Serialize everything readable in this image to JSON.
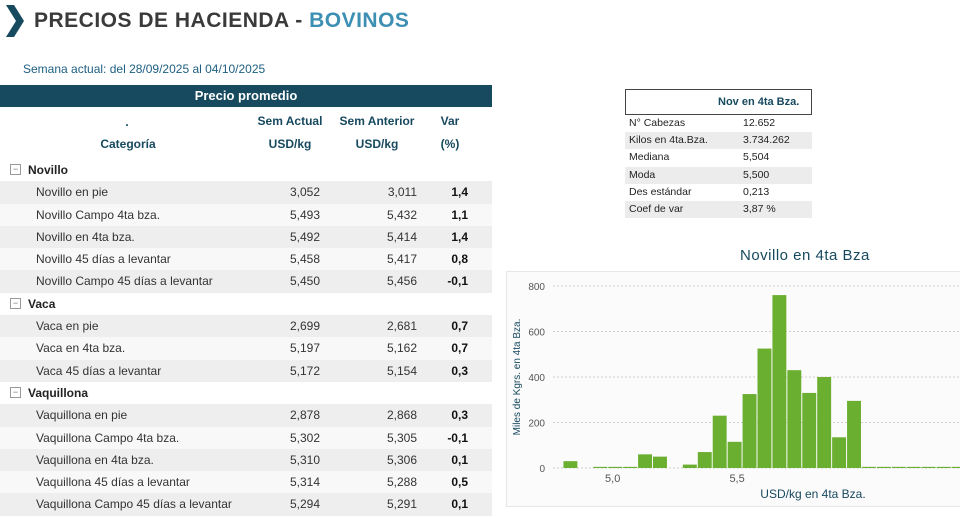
{
  "header": {
    "title_main": "PRECIOS DE HACIENDA - ",
    "title_accent": "BOVINOS"
  },
  "week_label": "Semana actual: del 28/09/2025 al 04/10/2025",
  "table": {
    "top_header": "Precio promedio",
    "col_dot": ".",
    "col_categoria": "Categoría",
    "col_actual_1": "Sem Actual",
    "col_actual_2": "USD/kg",
    "col_anterior_1": "Sem Anterior",
    "col_anterior_2": "USD/kg",
    "col_var_1": "Var",
    "col_var_2": "(%)",
    "groups": [
      {
        "name": "Novillo",
        "rows": [
          {
            "name": "Novillo en pie",
            "actual": "3,052",
            "anterior": "3,011",
            "var": "1,4"
          },
          {
            "name": "Novillo Campo 4ta bza.",
            "actual": "5,493",
            "anterior": "5,432",
            "var": "1,1"
          },
          {
            "name": "Novillo en 4ta bza.",
            "actual": "5,492",
            "anterior": "5,414",
            "var": "1,4"
          },
          {
            "name": "Novillo 45 días a levantar",
            "actual": "5,458",
            "anterior": "5,417",
            "var": "0,8"
          },
          {
            "name": "Novillo Campo 45 días a levantar",
            "actual": "5,450",
            "anterior": "5,456",
            "var": "-0,1"
          }
        ]
      },
      {
        "name": "Vaca",
        "rows": [
          {
            "name": "Vaca en pie",
            "actual": "2,699",
            "anterior": "2,681",
            "var": "0,7"
          },
          {
            "name": "Vaca en 4ta bza.",
            "actual": "5,197",
            "anterior": "5,162",
            "var": "0,7"
          },
          {
            "name": "Vaca 45 días a levantar",
            "actual": "5,172",
            "anterior": "5,154",
            "var": "0,3"
          }
        ]
      },
      {
        "name": "Vaquillona",
        "rows": [
          {
            "name": "Vaquillona en pie",
            "actual": "2,878",
            "anterior": "2,868",
            "var": "0,3"
          },
          {
            "name": "Vaquillona Campo 4ta bza.",
            "actual": "5,302",
            "anterior": "5,305",
            "var": "-0,1"
          },
          {
            "name": "Vaquillona en 4ta bza.",
            "actual": "5,310",
            "anterior": "5,306",
            "var": "0,1"
          },
          {
            "name": "Vaquillona 45 días a levantar",
            "actual": "5,314",
            "anterior": "5,288",
            "var": "0,5"
          },
          {
            "name": "Vaquillona Campo 45 días a levantar",
            "actual": "5,294",
            "anterior": "5,291",
            "var": "0,1"
          }
        ]
      }
    ]
  },
  "stats": {
    "header": "Nov en 4ta Bza.",
    "rows": [
      {
        "label": "N° Cabezas",
        "value": "12.652"
      },
      {
        "label": "Kilos en 4ta.Bza.",
        "value": "3.734.262"
      },
      {
        "label": "Mediana",
        "value": "5,504"
      },
      {
        "label": "Moda",
        "value": "5,500"
      },
      {
        "label": "Des estándar",
        "value": "0,213"
      },
      {
        "label": "Coef de var",
        "value": "3,87 %"
      }
    ]
  },
  "chart_data": {
    "type": "bar",
    "title": "Novillo en 4ta Bza",
    "xlabel": "USD/kg en 4ta Bza.",
    "ylabel": "Miles de Kgrs. en 4ta Bza.",
    "ylim": [
      0,
      800
    ],
    "yticks": [
      0,
      200,
      400,
      600,
      800
    ],
    "xticks": [
      {
        "value": 5.0,
        "label": "5,0"
      },
      {
        "value": 5.5,
        "label": "5,5"
      }
    ],
    "grid": true,
    "color": "#6aaf2f",
    "bin_width": 0.06,
    "x": [
      4.8,
      4.86,
      4.92,
      4.98,
      5.04,
      5.1,
      5.16,
      5.22,
      5.28,
      5.34,
      5.4,
      5.46,
      5.52,
      5.58,
      5.64,
      5.7,
      5.76,
      5.82,
      5.88,
      5.94,
      6.0,
      6.06,
      6.12,
      6.18,
      6.24,
      6.3,
      6.36
    ],
    "values": [
      30,
      0,
      5,
      5,
      5,
      60,
      50,
      0,
      15,
      70,
      230,
      115,
      325,
      525,
      760,
      430,
      330,
      400,
      135,
      295,
      5,
      5,
      5,
      5,
      5,
      5,
      5
    ]
  }
}
